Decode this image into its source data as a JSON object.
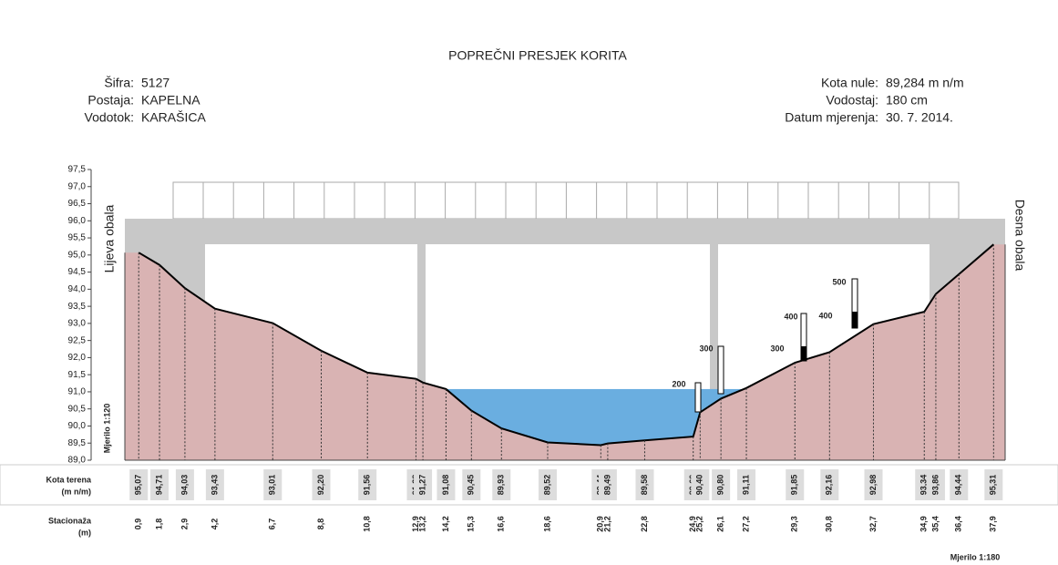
{
  "chart_data": {
    "type": "cross-section",
    "title": "POPREČNI PRESJEK KORITA",
    "info_left": [
      [
        "Šifra:",
        "5127"
      ],
      [
        "Postaja:",
        "KAPELNA"
      ],
      [
        "Vodotok:",
        "KARAŠICA"
      ]
    ],
    "info_right": [
      [
        "Kota nule:",
        "89,284 m n/m"
      ],
      [
        "Vodostaj:",
        "180 cm"
      ],
      [
        "Datum mjerenja:",
        "30. 7. 2014."
      ]
    ],
    "left_bank": "Lijeva obala",
    "right_bank": "Desna obala",
    "vertical_scale": "Mjerilo 1:120",
    "horizontal_scale": "Mjerilo 1:180",
    "terrain_row_label": [
      "Kota terena",
      "(m n/m)"
    ],
    "station_row_label": [
      "Stacionaža",
      "(m)"
    ],
    "x": [
      0.9,
      1.8,
      2.9,
      4.2,
      6.7,
      8.8,
      10.8,
      12.9,
      13.2,
      14.2,
      15.3,
      16.6,
      18.6,
      20.9,
      21.2,
      22.8,
      24.9,
      25.2,
      26.1,
      27.2,
      29.3,
      30.8,
      32.7,
      34.9,
      35.4,
      36.4,
      37.9
    ],
    "x_labels": [
      "0,9",
      "1,8",
      "2,9",
      "4,2",
      "6,7",
      "8,8",
      "10,8",
      "12,9",
      "13,2",
      "14,2",
      "15,3",
      "16,6",
      "18,6",
      "20,9",
      "21,2",
      "22,8",
      "24,9",
      "25,2",
      "26,1",
      "27,2",
      "29,3",
      "30,8",
      "32,7",
      "34,9",
      "35,4",
      "36,4",
      "37,9"
    ],
    "values": [
      95.07,
      94.71,
      94.03,
      93.43,
      93.01,
      92.2,
      91.56,
      91.38,
      91.27,
      91.08,
      90.45,
      89.93,
      89.52,
      89.44,
      89.49,
      89.58,
      89.69,
      90.4,
      90.8,
      91.11,
      91.85,
      92.16,
      92.98,
      93.34,
      93.86,
      94.44,
      95.31
    ],
    "value_labels": [
      "95,07",
      "94,71",
      "94,03",
      "93,43",
      "93,01",
      "92,20",
      "91,56",
      "91,38",
      "91,27",
      "91,08",
      "90,45",
      "89,93",
      "89,52",
      "89,44",
      "89,49",
      "89,58",
      "89,69",
      "90,40",
      "90,80",
      "91,11",
      "91,85",
      "92,16",
      "92,98",
      "93,34",
      "93,86",
      "94,44",
      "95,31"
    ],
    "water_level": 91.08,
    "depth_marks": [
      200,
      300,
      400,
      300,
      500,
      400
    ],
    "terrain_color": "#d9b3b3",
    "water_color": "#6aaee0",
    "bridge_color": "#c8c8c8",
    "xlim": [
      0.3,
      38.4
    ],
    "ylim": [
      89.0,
      97.5
    ],
    "yticks": [
      {
        "value": 89.0,
        "label": "89,0"
      },
      {
        "value": 89.5,
        "label": "89,5"
      },
      {
        "value": 90.0,
        "label": "90,0"
      },
      {
        "value": 90.5,
        "label": "90,5"
      },
      {
        "value": 91.0,
        "label": "91,0"
      },
      {
        "value": 91.5,
        "label": "91,5"
      },
      {
        "value": 92.0,
        "label": "92,0"
      },
      {
        "value": 92.5,
        "label": "92,5"
      },
      {
        "value": 93.0,
        "label": "93,0"
      },
      {
        "value": 93.5,
        "label": "93,5"
      },
      {
        "value": 94.0,
        "label": "94,0"
      },
      {
        "value": 94.5,
        "label": "94,5"
      },
      {
        "value": 95.0,
        "label": "95,0"
      },
      {
        "value": 95.5,
        "label": "95,5"
      },
      {
        "value": 96.0,
        "label": "96,0"
      },
      {
        "value": 96.5,
        "label": "96,5"
      },
      {
        "value": 97.0,
        "label": "97,0"
      },
      {
        "value": 97.5,
        "label": "97,5"
      }
    ]
  }
}
